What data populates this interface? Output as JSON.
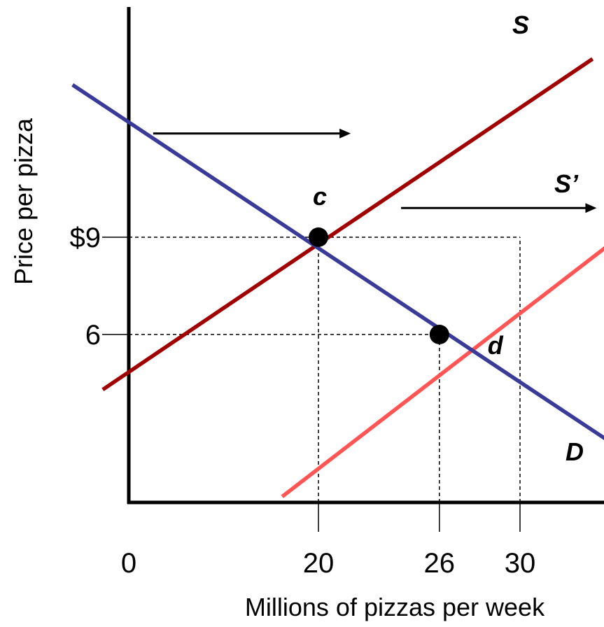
{
  "chart_data": {
    "type": "line",
    "title": "",
    "xlabel": "Millions of pizzas per week",
    "ylabel": "Price per pizza",
    "x_ticks": [
      {
        "value": 0,
        "label": "0"
      },
      {
        "value": 20,
        "label": "20"
      },
      {
        "value": 26,
        "label": "26"
      },
      {
        "value": 30,
        "label": "30"
      }
    ],
    "y_ticks": [
      {
        "value": 9,
        "label": "$9"
      },
      {
        "value": 6,
        "label": "6"
      }
    ],
    "series": [
      {
        "name": "S",
        "color": "#A00000",
        "points": [
          [
            9.3,
            4.3
          ],
          [
            33.6,
            14.5
          ]
        ]
      },
      {
        "name": "S’",
        "color": "#FF5555",
        "points": [
          [
            18.2,
            1.0
          ],
          [
            37.2,
            10.1
          ]
        ]
      },
      {
        "name": "D",
        "color": "#3A3A99",
        "points": [
          [
            7.8,
            13.7
          ],
          [
            37.1,
            1.6
          ]
        ]
      }
    ],
    "points": [
      {
        "label": "c",
        "x": 20,
        "y": 9
      },
      {
        "label": "d",
        "x": 26,
        "y": 6
      }
    ],
    "guides": [
      {
        "from": [
          0,
          9
        ],
        "to": [
          30,
          9
        ]
      },
      {
        "from": [
          0,
          6
        ],
        "to": [
          26,
          6
        ]
      },
      {
        "from": [
          20,
          0
        ],
        "to": [
          20,
          9
        ]
      },
      {
        "from": [
          26,
          0
        ],
        "to": [
          26,
          6
        ]
      },
      {
        "from": [
          30,
          0
        ],
        "to": [
          30,
          9
        ]
      }
    ],
    "arrows": [
      {
        "from": [
          11.8,
          12.2
        ],
        "to": [
          21.6,
          12.2
        ]
      },
      {
        "from": [
          24.1,
          9.9
        ],
        "to": [
          33.8,
          9.9
        ]
      }
    ]
  }
}
